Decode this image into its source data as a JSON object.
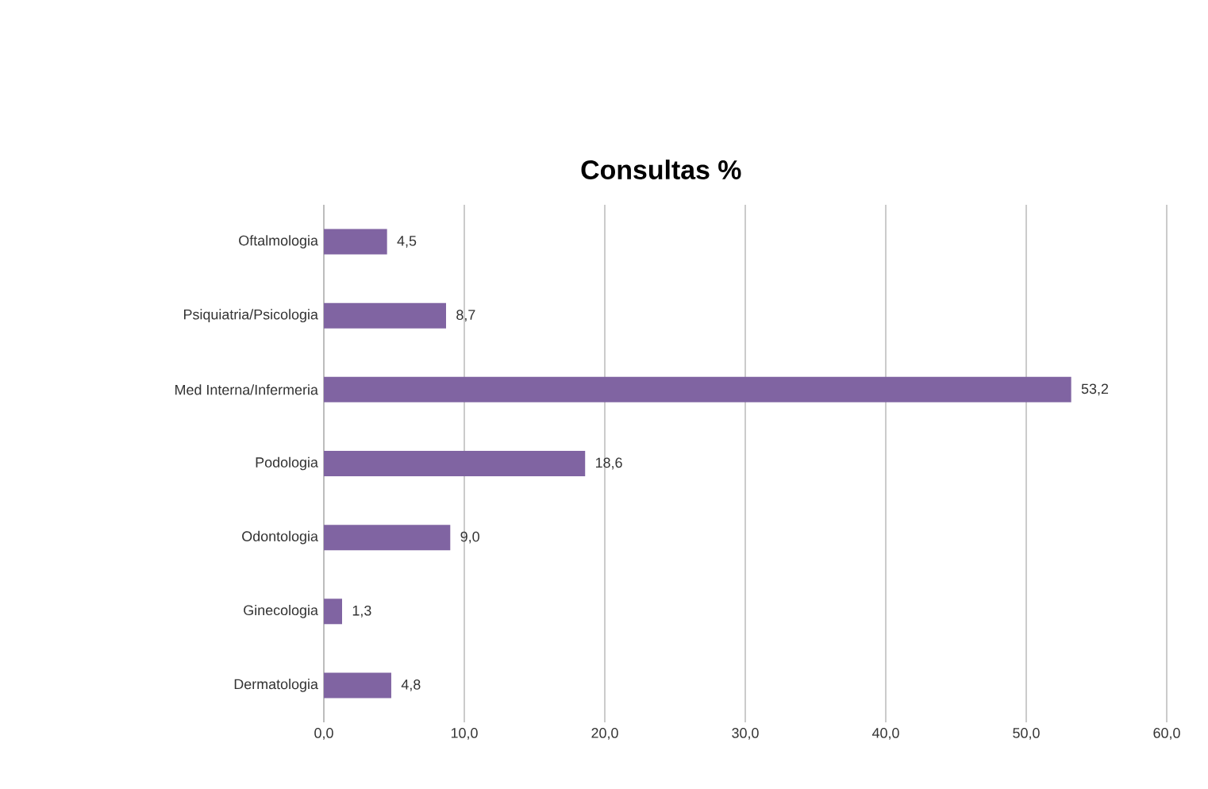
{
  "chart_data": {
    "type": "bar",
    "orientation": "horizontal",
    "title": "Consultas %",
    "categories": [
      "Oftalmologia",
      "Psiquiatria/Psicologia",
      "Med Interna/Infermeria",
      "Podologia",
      "Odontologia",
      "Ginecologia",
      "Dermatologia"
    ],
    "values": [
      4.5,
      8.7,
      53.2,
      18.6,
      9.0,
      1.3,
      4.8
    ],
    "value_labels": [
      "4,5",
      "8,7",
      "53,2",
      "18,6",
      "9,0",
      "1,3",
      "4,8"
    ],
    "color": "#8064a2",
    "xlim": [
      0,
      60
    ],
    "xticks": [
      {
        "value": 0,
        "label": "0,0"
      },
      {
        "value": 10,
        "label": "10,0"
      },
      {
        "value": 20,
        "label": "20,0"
      },
      {
        "value": 30,
        "label": "30,0"
      },
      {
        "value": 40,
        "label": "40,0"
      },
      {
        "value": 50,
        "label": "50,0"
      },
      {
        "value": 60,
        "label": "60,0"
      }
    ],
    "grid": "x"
  }
}
